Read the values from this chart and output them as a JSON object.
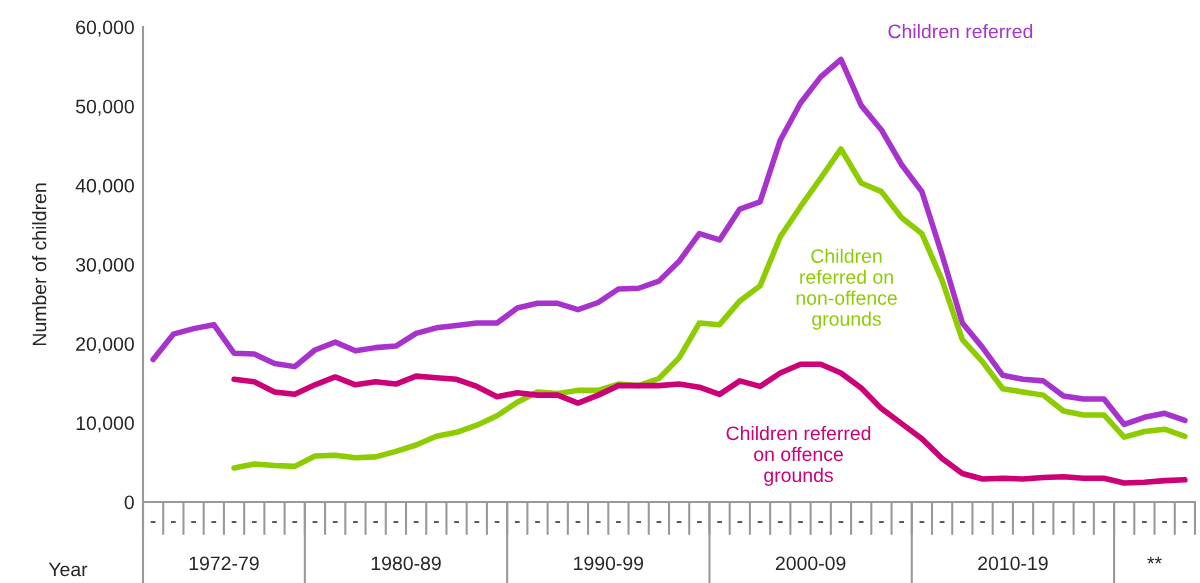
{
  "chart_data": {
    "type": "line",
    "xlabel": "Year",
    "ylabel": "Number of children",
    "categories": [
      "-",
      "-",
      "-",
      "-",
      "-",
      "-",
      "-",
      "-",
      "-",
      "-",
      "-",
      "-",
      "-",
      "-",
      "-",
      "-",
      "-",
      "-",
      "-",
      "-",
      "-",
      "-",
      "-",
      "-",
      "-",
      "-",
      "-",
      "-",
      "-",
      "-",
      "-",
      "-",
      "-",
      "-",
      "-",
      "-",
      "-",
      "-",
      "-",
      "-",
      "-",
      "-",
      "-",
      "-",
      "-",
      "-",
      "-",
      "-",
      "-",
      "-",
      "-",
      "-"
    ],
    "annotations": [
      "1972-79",
      "1980-89",
      "1990-99",
      "2000-09",
      "2010-19",
      "**"
    ],
    "series": [
      {
        "name": "Children referred",
        "color": "#a833cc",
        "values": [
          18000,
          21200,
          21900,
          22400,
          18800,
          18700,
          17500,
          17100,
          19200,
          20200,
          19100,
          19500,
          19700,
          21300,
          22000,
          22300,
          22600,
          22600,
          24500,
          25100,
          25100,
          24300,
          25200,
          26900,
          27000,
          27900,
          30400,
          33900,
          33100,
          37000,
          37900,
          45700,
          50400,
          53700,
          55900,
          50100,
          47000,
          42600,
          39200,
          31200,
          22600,
          19500,
          16000,
          15500,
          15300,
          13400,
          13000,
          13000,
          9800,
          10700,
          11200,
          10300
        ]
      },
      {
        "name": "Children referred on non-offence grounds",
        "color": "#8ccc00",
        "values": [
          null,
          null,
          null,
          null,
          4300,
          4800,
          4600,
          4500,
          5800,
          5900,
          5600,
          5700,
          6400,
          7200,
          8300,
          8800,
          9700,
          10900,
          12600,
          13900,
          13700,
          14100,
          14100,
          14900,
          14700,
          15600,
          18200,
          22600,
          22400,
          25400,
          27300,
          33500,
          37300,
          40900,
          44600,
          40300,
          39200,
          35900,
          33900,
          28000,
          20500,
          17700,
          14300,
          13900,
          13500,
          11500,
          11000,
          11000,
          8200,
          8900,
          9200,
          8300
        ]
      },
      {
        "name": "Children referred on offence grounds",
        "color": "#cc0077",
        "values": [
          null,
          null,
          null,
          null,
          15500,
          15200,
          13900,
          13600,
          14800,
          15800,
          14800,
          15200,
          14900,
          15900,
          15700,
          15500,
          14600,
          13300,
          13800,
          13500,
          13500,
          12500,
          13500,
          14700,
          14700,
          14700,
          14900,
          14500,
          13600,
          15300,
          14600,
          16300,
          17400,
          17400,
          16300,
          14400,
          11800,
          9900,
          8000,
          5500,
          3600,
          2900,
          3000,
          2900,
          3100,
          3200,
          3000,
          3000,
          2400,
          2500,
          2700,
          2800
        ]
      }
    ],
    "ylim": [
      0,
      60000
    ],
    "yticks": [
      {
        "value": 0,
        "label": "0"
      },
      {
        "value": 10000,
        "label": "10,000"
      },
      {
        "value": 20000,
        "label": "20,000"
      },
      {
        "value": 30000,
        "label": "30,000"
      },
      {
        "value": 40000,
        "label": "40,000"
      },
      {
        "value": 50000,
        "label": "50,000"
      },
      {
        "value": 60000,
        "label": "60,000"
      }
    ],
    "grid": false,
    "legend": false,
    "marker": "none",
    "line_style": "solid"
  }
}
